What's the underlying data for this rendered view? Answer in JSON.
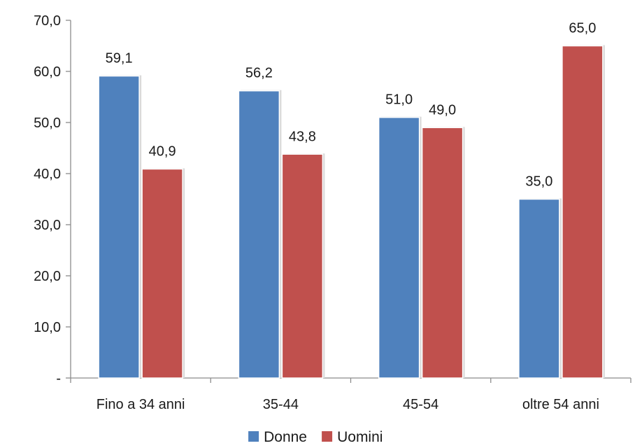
{
  "chart_data": {
    "type": "bar",
    "categories": [
      "Fino a 34 anni",
      "35-44",
      "45-54",
      "oltre 54 anni"
    ],
    "series": [
      {
        "name": "Donne",
        "values": [
          59.1,
          56.2,
          51.0,
          35.0
        ],
        "labels": [
          "59,1",
          "56,2",
          "51,0",
          "35,0"
        ],
        "color": "#4f81bd"
      },
      {
        "name": "Uomini",
        "values": [
          40.9,
          43.8,
          49.0,
          65.0
        ],
        "labels": [
          "40,9",
          "43,8",
          "49,0",
          "65,0"
        ],
        "color": "#c0504d"
      }
    ],
    "ylim": [
      0,
      70
    ],
    "yticks": [
      0,
      10,
      20,
      30,
      40,
      50,
      60,
      70
    ],
    "ytick_labels": [
      "-",
      "10,0",
      "20,0",
      "30,0",
      "40,0",
      "50,0",
      "60,0",
      "70,0"
    ],
    "grid": false,
    "legend_position": "bottom"
  }
}
